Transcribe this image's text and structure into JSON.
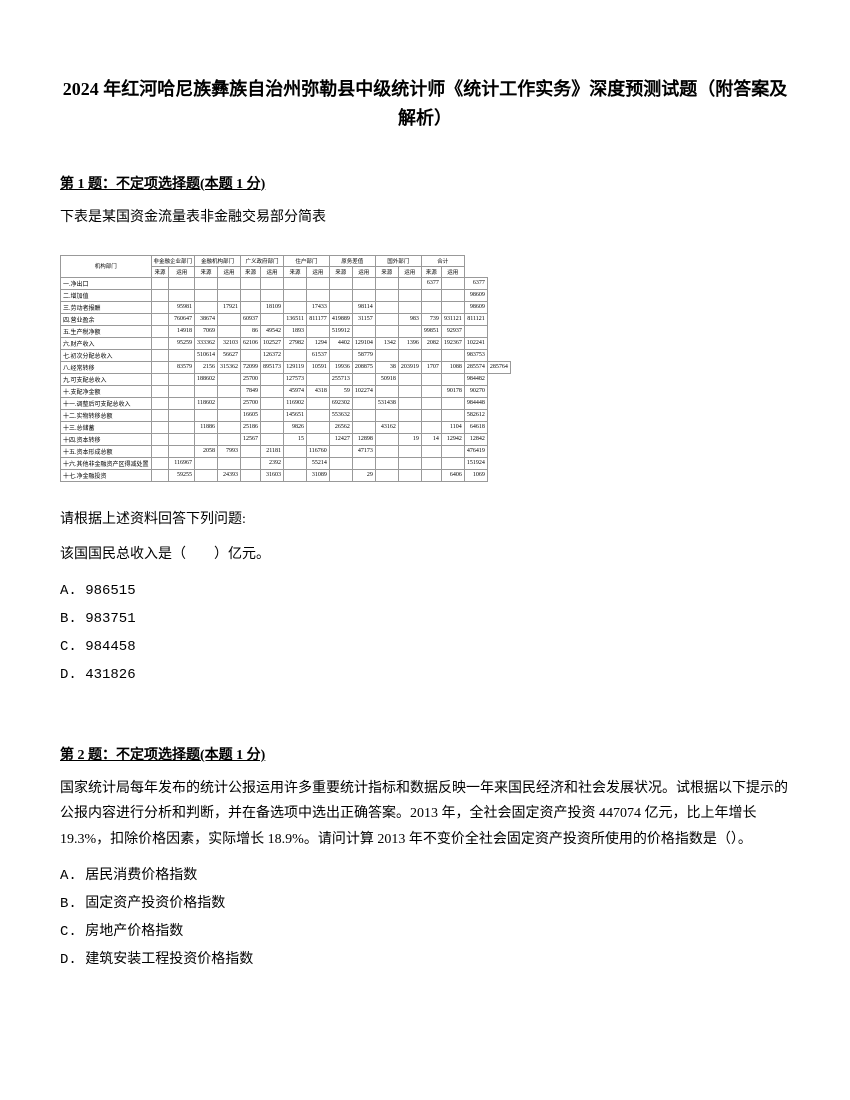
{
  "title": "2024 年红河哈尼族彝族自治州弥勒县中级统计师《统计工作实务》深度预测试题（附答案及解析）",
  "q1": {
    "header_prefix": "第 1 题：",
    "header_text": "不定项选择题(本题 1 分)",
    "intro": "下表是某国资金流量表非金融交易部分简表",
    "prompt1": "请根据上述资料回答下列问题:",
    "prompt2": "该国国民总收入是（　　）亿元。",
    "options": {
      "a": "A. 986515",
      "b": "B. 983751",
      "c": "C. 984458",
      "d": "D. 431826"
    }
  },
  "q2": {
    "header_prefix": "第 2 题：",
    "header_text": "不定项选择题(本题 1 分)",
    "text": "国家统计局每年发布的统计公报运用许多重要统计指标和数据反映一年来国民经济和社会发展状况。试根据以下提示的公报内容进行分析和判断，并在备选项中选出正确答案。2013 年，全社会固定资产投资 447074 亿元，比上年增长 19.3%，扣除价格因素，实际增长 18.9%。请问计算 2013 年不变价全社会固定资产投资所使用的价格指数是（）。",
    "options": {
      "a": "A. 居民消费价格指数",
      "b": "B. 固定资产投资价格指数",
      "c": "C. 房地产价格指数",
      "d": "D. 建筑安装工程投资价格指数"
    }
  },
  "table": {
    "col_headers": [
      "机构部门",
      "非金融企业部门",
      "金融机构部门",
      "广义政府部门",
      "住户部门",
      "原务差值",
      "国外部门",
      "合计"
    ],
    "sub_headers": [
      "来源",
      "运用",
      "来源",
      "运用",
      "来源",
      "运用",
      "来源",
      "运用",
      "来源",
      "运用",
      "来源",
      "运用",
      "来源",
      "运用"
    ],
    "rows": [
      {
        "label": "一.净出口",
        "cells": [
          "",
          "",
          "",
          "",
          "",
          "",
          "",
          "",
          "",
          "",
          "",
          "",
          "6377",
          "",
          "6377"
        ]
      },
      {
        "label": "二.增加值",
        "cells": [
          "",
          "",
          "",
          "",
          "",
          "",
          "",
          "",
          "",
          "",
          "",
          "",
          "",
          "",
          "98609"
        ]
      },
      {
        "label": "三.劳动者报酬",
        "cells": [
          "",
          "95981",
          "",
          "17921",
          "",
          "18109",
          "",
          "17433",
          "",
          "98114",
          "",
          "",
          "",
          "",
          "98609"
        ]
      },
      {
        "label": "四.营业盈余",
        "cells": [
          "",
          "760647",
          "38674",
          "",
          "60937",
          "",
          "136511",
          "811177",
          "419889",
          "31157",
          "",
          "983",
          "739",
          "931121",
          "811121"
        ]
      },
      {
        "label": "五.生产税净额",
        "cells": [
          "",
          "14918",
          "7069",
          "",
          "86",
          "49542",
          "1893",
          "",
          "519912",
          "",
          "",
          "",
          "99851",
          "92937",
          ""
        ]
      },
      {
        "label": "六.财产收入",
        "cells": [
          "",
          "95259",
          "333362",
          "32103",
          "62106",
          "102527",
          "27982",
          "1294",
          "4402",
          "129104",
          "1342",
          "1396",
          "2082",
          "192367",
          "102241"
        ]
      },
      {
        "label": "七.初次分配总收入",
        "cells": [
          "",
          "",
          "510614",
          "56627",
          "",
          "126372",
          "",
          "61537",
          "",
          "58779",
          "",
          "",
          "",
          "",
          "983753"
        ]
      },
      {
        "label": "八.经常转移",
        "cells": [
          "",
          "83579",
          "2156",
          "315362",
          "72099",
          "895173",
          "129119",
          "10591",
          "19936",
          "208875",
          "38",
          "203919",
          "1707",
          "1088",
          "285574",
          "285764"
        ]
      },
      {
        "label": "九.可支配总收入",
        "cells": [
          "",
          "",
          "188602",
          "",
          "25700",
          "",
          "127573",
          "",
          "255713",
          "",
          "50918",
          "",
          "",
          "",
          "984482"
        ]
      },
      {
        "label": "十.支配净金额",
        "cells": [
          "",
          "",
          "",
          "",
          "7849",
          "",
          "45974",
          "4318",
          "59",
          "102274",
          "",
          "",
          "",
          "90178",
          "90270"
        ]
      },
      {
        "label": "十一.调整后可支配总收入",
        "cells": [
          "",
          "",
          "118602",
          "",
          "25700",
          "",
          "116902",
          "",
          "692302",
          "",
          "531438",
          "",
          "",
          "",
          "984448"
        ]
      },
      {
        "label": "十二.实物转移总额",
        "cells": [
          "",
          "",
          "",
          "",
          "16605",
          "",
          "145651",
          "",
          "553632",
          "",
          "",
          "",
          "",
          "",
          "582612"
        ]
      },
      {
        "label": "十三.总储蓄",
        "cells": [
          "",
          "",
          "11886",
          "",
          "25186",
          "",
          "9826",
          "",
          "26562",
          "",
          "43162",
          "",
          "",
          "1104",
          "64618"
        ]
      },
      {
        "label": "十四.资本转移",
        "cells": [
          "",
          "",
          "",
          "",
          "12567",
          "",
          "15",
          "",
          "12427",
          "12898",
          "",
          "19",
          "14",
          "12942",
          "12842"
        ]
      },
      {
        "label": "十五.资本形成总额",
        "cells": [
          "",
          "",
          "2058",
          "7993",
          "",
          "21181",
          "",
          "116760",
          "",
          "47173",
          "",
          "",
          "",
          "",
          "476419"
        ]
      },
      {
        "label": "十六.其他非金融资产区得减处置",
        "cells": [
          "",
          "116967",
          "",
          "",
          "",
          "2392",
          "",
          "55214",
          "",
          "",
          "",
          "",
          "",
          "",
          "151924"
        ]
      },
      {
        "label": "十七.净金融投资",
        "cells": [
          "",
          "59255",
          "",
          "24393",
          "",
          "31603",
          "",
          "31089",
          "",
          "29",
          "",
          "",
          "",
          "6406",
          "1069"
        ]
      }
    ]
  }
}
